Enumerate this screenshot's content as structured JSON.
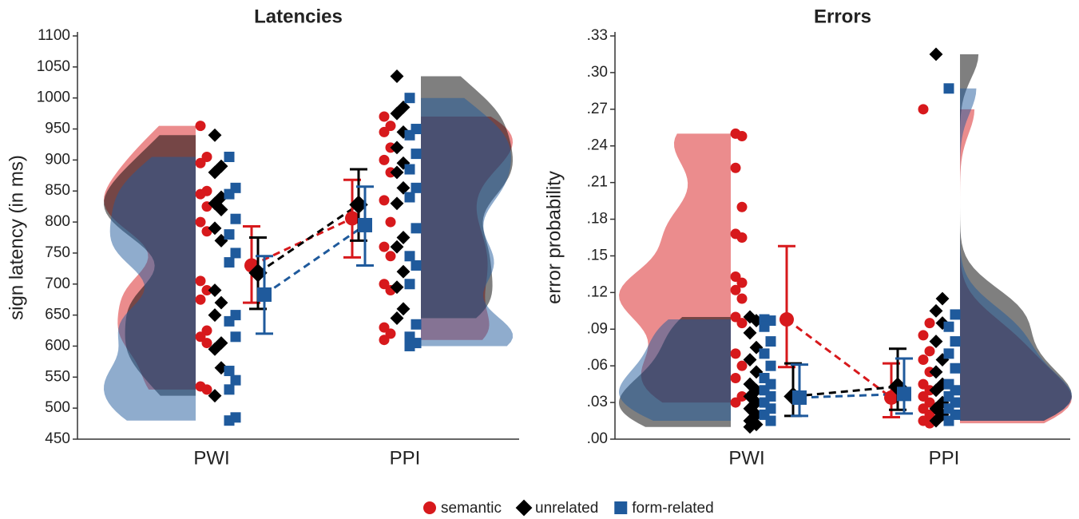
{
  "chart_data": [
    {
      "type": "raincloud",
      "title": "Latencies",
      "y_label": "sign latency (in ms)",
      "categories": [
        "PWI",
        "PPI"
      ],
      "ylim": [
        450,
        1100
      ],
      "yticks": [
        450,
        500,
        550,
        600,
        650,
        700,
        750,
        800,
        850,
        900,
        950,
        1000,
        1050,
        1100
      ],
      "series": [
        {
          "name": "semantic",
          "color": "#d7191c",
          "shape": "circle",
          "means": [
            730,
            806
          ],
          "ci_low": [
            670,
            743
          ],
          "ci_high": [
            793,
            868
          ],
          "points": [
            [
              955,
              905,
              895,
              850,
              845,
              825,
              800,
              785,
              705,
              690,
              675,
              625,
              615,
              605,
              535,
              530
            ],
            [
              970,
              955,
              945,
              920,
              900,
              880,
              835,
              800,
              760,
              745,
              700,
              690,
              630,
              620,
              610
            ]
          ]
        },
        {
          "name": "unrelated",
          "color": "#000000",
          "shape": "diamond",
          "means": [
            718,
            828
          ],
          "ci_low": [
            660,
            770
          ],
          "ci_high": [
            775,
            885
          ],
          "points": [
            [
              940,
              890,
              880,
              840,
              830,
              820,
              790,
              770,
              690,
              670,
              650,
              605,
              595,
              565,
              520
            ],
            [
              1035,
              985,
              975,
              945,
              920,
              895,
              880,
              855,
              830,
              775,
              760,
              720,
              695,
              660,
              645
            ]
          ]
        },
        {
          "name": "form-related",
          "color": "#1f5a9c",
          "shape": "square",
          "means": [
            683,
            795
          ],
          "ci_low": [
            620,
            730
          ],
          "ci_high": [
            745,
            857
          ],
          "points": [
            [
              905,
              855,
              845,
              805,
              780,
              750,
              735,
              650,
              640,
              615,
              560,
              545,
              530,
              485,
              480
            ],
            [
              1000,
              950,
              940,
              910,
              885,
              855,
              840,
              790,
              745,
              730,
              700,
              635,
              615,
              605,
              600
            ]
          ]
        }
      ]
    },
    {
      "type": "raincloud",
      "title": "Errors",
      "y_label": "error probability",
      "categories": [
        "PWI",
        "PPI"
      ],
      "ylim": [
        0,
        0.33
      ],
      "yticks": [
        {
          "value": 0,
          "label": ".00"
        },
        {
          "value": 0.03,
          "label": ".03"
        },
        {
          "value": 0.06,
          "label": ".06"
        },
        {
          "value": 0.09,
          "label": ".09"
        },
        {
          "value": 0.12,
          "label": ".12"
        },
        {
          "value": 0.15,
          "label": ".15"
        },
        {
          "value": 0.18,
          "label": ".18"
        },
        {
          "value": 0.21,
          "label": ".21"
        },
        {
          "value": 0.24,
          "label": ".24"
        },
        {
          "value": 0.27,
          "label": ".27"
        },
        {
          "value": 0.3,
          "label": ".30"
        },
        {
          "value": 0.33,
          "label": ".33"
        }
      ],
      "series": [
        {
          "name": "semantic",
          "color": "#d7191c",
          "shape": "circle",
          "means": [
            0.098,
            0.034
          ],
          "ci_low": [
            0.059,
            0.018
          ],
          "ci_high": [
            0.158,
            0.062
          ],
          "points": [
            [
              0.25,
              0.248,
              0.222,
              0.19,
              0.168,
              0.165,
              0.133,
              0.128,
              0.122,
              0.115,
              0.1,
              0.095,
              0.07,
              0.06,
              0.05,
              0.035,
              0.03
            ],
            [
              0.27,
              0.095,
              0.085,
              0.072,
              0.065,
              0.055,
              0.045,
              0.04,
              0.035,
              0.03,
              0.025,
              0.02,
              0.015,
              0.013
            ]
          ]
        },
        {
          "name": "unrelated",
          "color": "#000000",
          "shape": "diamond",
          "means": [
            0.035,
            0.043
          ],
          "ci_low": [
            0.019,
            0.024
          ],
          "ci_high": [
            0.062,
            0.074
          ],
          "points": [
            [
              0.1,
              0.097,
              0.087,
              0.075,
              0.065,
              0.055,
              0.045,
              0.04,
              0.035,
              0.03,
              0.025,
              0.02,
              0.015,
              0.012,
              0.01
            ],
            [
              0.315,
              0.115,
              0.105,
              0.095,
              0.08,
              0.065,
              0.055,
              0.045,
              0.04,
              0.03,
              0.025,
              0.02,
              0.015
            ]
          ]
        },
        {
          "name": "form-related",
          "color": "#1f5a9c",
          "shape": "square",
          "means": [
            0.034,
            0.037
          ],
          "ci_low": [
            0.019,
            0.021
          ],
          "ci_high": [
            0.061,
            0.066
          ],
          "points": [
            [
              0.098,
              0.097,
              0.092,
              0.08,
              0.07,
              0.06,
              0.05,
              0.045,
              0.04,
              0.035,
              0.03,
              0.025,
              0.02,
              0.015
            ],
            [
              0.287,
              0.102,
              0.092,
              0.08,
              0.07,
              0.058,
              0.045,
              0.04,
              0.035,
              0.03,
              0.025,
              0.02,
              0.015
            ]
          ]
        }
      ]
    }
  ]
}
